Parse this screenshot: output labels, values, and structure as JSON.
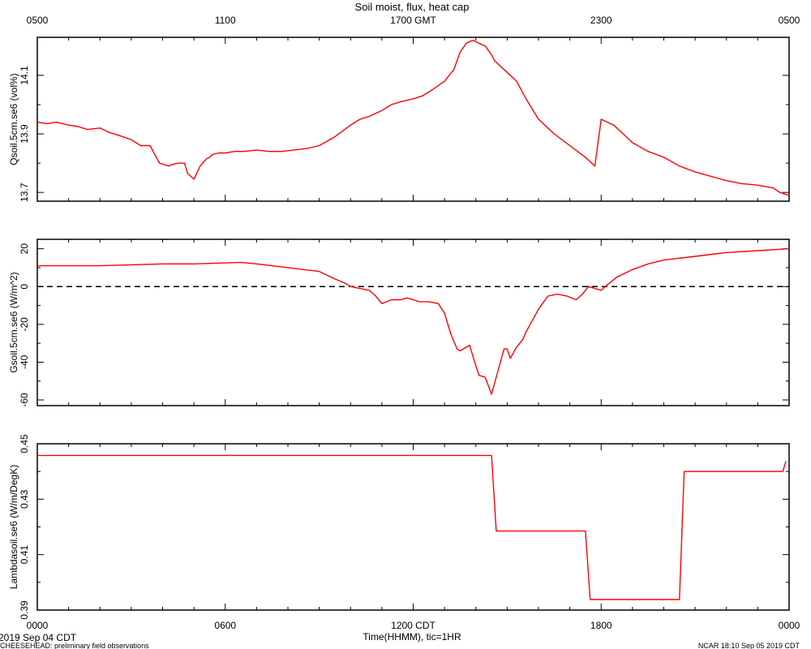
{
  "chart_data": {
    "type": "line",
    "title": "Soil moist, flux, heat cap",
    "top_axis": {
      "label": "",
      "ticks": [
        "0500",
        "1100",
        "1700 GMT",
        "2300",
        "0500"
      ]
    },
    "bottom_axis": {
      "label": "Time(HHMM), tic=1HR",
      "ticks": [
        "0000",
        "0600",
        "1200 CDT",
        "1800",
        "0000"
      ]
    },
    "x_range_hours": [
      0,
      24
    ],
    "line_color": "#ff0000",
    "date_left": "2019 Sep 04 CDT",
    "footer_left": "CHEESEHEAD: preliminary field observations",
    "footer_right": "NCAR 18:10 Sep 05 2019 CDT",
    "panels": [
      {
        "ylabel": "Qsoil.5cm.se6 (vol%)",
        "ylim": [
          13.67,
          14.23
        ],
        "ytick_values": [
          13.7,
          13.9,
          14.1
        ],
        "ytick_labels": [
          "13.7",
          "13.9",
          "14.1"
        ],
        "series": [
          {
            "x": [
              0,
              0.3,
              0.6,
              1,
              1.3,
              1.6,
              2,
              2.3,
              2.6,
              3,
              3.3,
              3.6,
              3.9,
              4.2,
              4.3,
              4.5,
              4.7,
              4.8,
              5.0,
              5.2,
              5.4,
              5.5,
              5.6,
              5.8,
              6.0,
              6.3,
              6.6,
              7.0,
              7.4,
              7.8,
              8.2,
              8.6,
              9,
              9.5,
              10,
              10.3,
              10.6,
              11,
              11.3,
              11.6,
              12,
              12.3,
              12.6,
              13,
              13.3,
              13.5,
              13.7,
              13.9,
              14.1,
              14.3,
              14.5,
              14.6,
              14.8,
              15,
              15.3,
              15.6,
              16,
              16.5,
              17,
              17.5,
              17.8,
              18,
              18.2,
              18.4,
              18.5,
              18.6,
              18.7,
              19,
              19.5,
              20,
              20.5,
              21,
              21.5,
              22,
              22.5,
              23,
              23.5,
              23.7,
              24
            ],
            "y": [
              13.94,
              13.935,
              13.94,
              13.93,
              13.925,
              13.915,
              13.92,
              13.905,
              13.895,
              13.88,
              13.86,
              13.86,
              13.8,
              13.79,
              13.795,
              13.8,
              13.8,
              13.765,
              13.745,
              13.79,
              13.815,
              13.82,
              13.83,
              13.835,
              13.835,
              13.84,
              13.84,
              13.845,
              13.84,
              13.84,
              13.845,
              13.85,
              13.86,
              13.89,
              13.93,
              13.95,
              13.96,
              13.98,
              14.0,
              14.01,
              14.02,
              14.03,
              14.05,
              14.08,
              14.12,
              14.18,
              14.21,
              14.22,
              14.21,
              14.2,
              14.17,
              14.15,
              14.13,
              14.11,
              14.08,
              14.02,
              13.95,
              13.9,
              13.86,
              13.82,
              13.79,
              13.95,
              13.94,
              13.93,
              13.92,
              13.91,
              13.9,
              13.87,
              13.84,
              13.82,
              13.79,
              13.77,
              13.755,
              13.74,
              13.73,
              13.725,
              13.715,
              13.7,
              13.69
            ]
          }
        ],
        "reference_line": null
      },
      {
        "ylabel": "Gsoil.5cm.se6 (W/m^2)",
        "ylim": [
          -63,
          25
        ],
        "ytick_values": [
          -60,
          -40,
          -20,
          0,
          20
        ],
        "ytick_labels": [
          "-60",
          "-40",
          "-20",
          "0",
          "20"
        ],
        "series": [
          {
            "x": [
              0,
              1,
              2,
              3,
              4,
              5,
              6,
              6.5,
              7,
              7.5,
              8,
              8.5,
              9,
              9.5,
              9.8,
              10,
              10.3,
              10.6,
              10.8,
              11,
              11.3,
              11.6,
              11.8,
              12,
              12.2,
              12.5,
              12.8,
              13,
              13.2,
              13.4,
              13.5,
              13.6,
              13.8,
              14,
              14.1,
              14.3,
              14.5,
              14.7,
              14.9,
              15.0,
              15.1,
              15.3,
              15.5,
              15.6,
              15.8,
              16,
              16.3,
              16.6,
              16.9,
              17.2,
              17.4,
              17.6,
              17.8,
              18,
              18.2,
              18.5,
              19,
              19.5,
              20,
              21,
              22,
              23,
              24
            ],
            "y": [
              11,
              11,
              11,
              11.5,
              12,
              12,
              12.5,
              12.8,
              12,
              11,
              10,
              9,
              8,
              4,
              2,
              0,
              -1,
              -2,
              -5,
              -9,
              -7,
              -7,
              -6,
              -7,
              -8,
              -8,
              -9,
              -14,
              -25,
              -33,
              -34,
              -33,
              -31,
              -42,
              -47,
              -48,
              -57,
              -45,
              -33,
              -33,
              -38,
              -32,
              -28,
              -24,
              -18,
              -12,
              -5,
              -4,
              -5,
              -7,
              -4,
              0,
              -1,
              -2,
              1,
              5,
              9,
              12,
              14,
              16,
              18,
              19,
              20
            ]
          }
        ],
        "reference_line": {
          "y": 0,
          "style": "dashed"
        }
      },
      {
        "ylabel": "Lambdasoil.se6 (W/m/DegK)",
        "ylim": [
          0.39,
          0.45
        ],
        "ytick_values": [
          0.39,
          0.41,
          0.43,
          0.45
        ],
        "ytick_labels": [
          "0.39",
          "0.41",
          "0.43",
          "0.45"
        ],
        "series": [
          {
            "x": [
              0,
              14.5,
              14.65,
              17.5,
              17.65,
              20.5,
              20.65,
              23.8,
              23.9
            ],
            "y": [
              0.4458,
              0.4458,
              0.4185,
              0.4185,
              0.3938,
              0.3938,
              0.44,
              0.44,
              0.4437
            ]
          }
        ],
        "reference_line": null
      }
    ]
  }
}
